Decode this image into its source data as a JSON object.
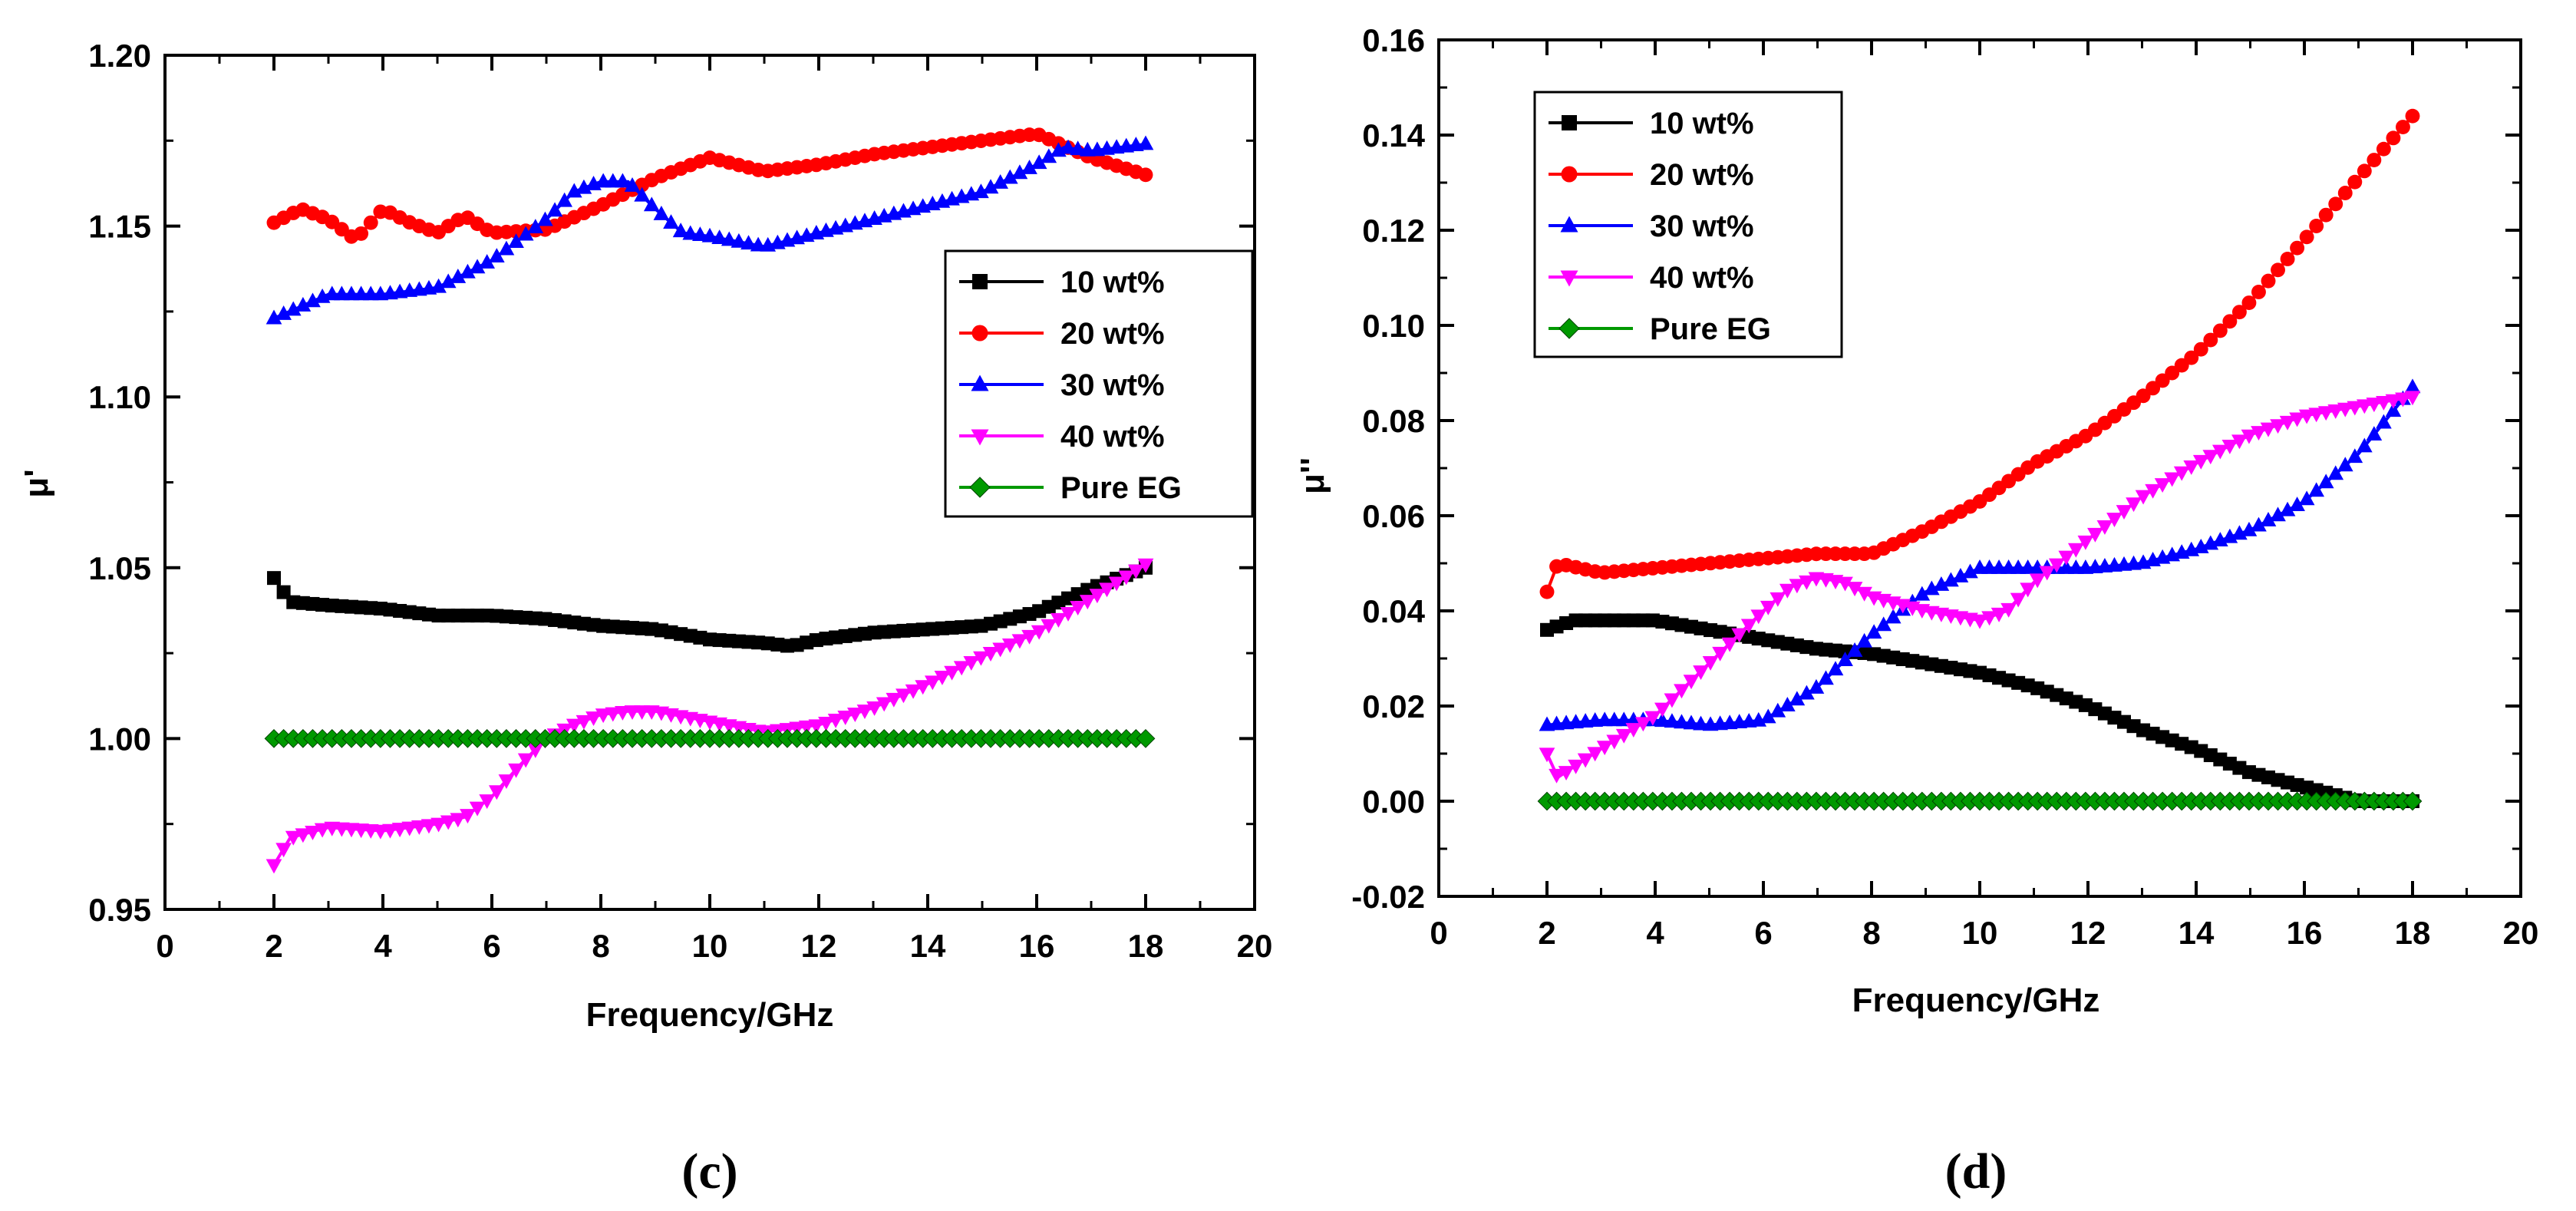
{
  "chart_data": [
    {
      "panel_label": "(c)",
      "type": "line",
      "xlabel": "Frequency/GHz",
      "ylabel": "μ'",
      "xlim": [
        0,
        20
      ],
      "ylim": [
        0.95,
        1.2
      ],
      "xticks": [
        0,
        2,
        4,
        6,
        8,
        10,
        12,
        14,
        16,
        18,
        20
      ],
      "xtick_labels": [
        "0",
        "2",
        "4",
        "6",
        "8",
        "10",
        "12",
        "14",
        "16",
        "18",
        "20"
      ],
      "yticks": [
        0.95,
        1.0,
        1.05,
        1.1,
        1.15,
        1.2
      ],
      "ytick_labels": [
        "0.95",
        "1.00",
        "1.05",
        "1.10",
        "1.15",
        "1.20"
      ],
      "legend_position": "center-right",
      "series": [
        {
          "name": "10 wt%",
          "color": "#000000",
          "marker": "square",
          "x": [
            2,
            2.3,
            3,
            4,
            5,
            6,
            7,
            8,
            9,
            10,
            11,
            11.5,
            12,
            13,
            14,
            15,
            16,
            17,
            18
          ],
          "y": [
            1.047,
            1.04,
            1.039,
            1.038,
            1.036,
            1.036,
            1.035,
            1.033,
            1.032,
            1.029,
            1.028,
            1.027,
            1.029,
            1.031,
            1.032,
            1.033,
            1.037,
            1.044,
            1.05
          ]
        },
        {
          "name": "20 wt%",
          "color": "#ff0000",
          "marker": "circle",
          "x": [
            2,
            2.5,
            3,
            3.5,
            4,
            4.5,
            5,
            5.5,
            6,
            7,
            8,
            9,
            10,
            11,
            12,
            13,
            14,
            15,
            16,
            17,
            18
          ],
          "y": [
            1.151,
            1.155,
            1.152,
            1.146,
            1.155,
            1.151,
            1.148,
            1.153,
            1.148,
            1.149,
            1.156,
            1.164,
            1.17,
            1.166,
            1.168,
            1.171,
            1.173,
            1.175,
            1.177,
            1.17,
            1.165
          ]
        },
        {
          "name": "30 wt%",
          "color": "#0000ff",
          "marker": "triangle-up",
          "x": [
            2,
            3,
            4,
            5,
            6,
            7,
            7.5,
            8,
            8.5,
            9,
            9.5,
            10,
            11,
            12,
            13,
            14,
            15,
            16,
            16.5,
            17,
            18
          ],
          "y": [
            1.123,
            1.13,
            1.13,
            1.132,
            1.14,
            1.152,
            1.16,
            1.163,
            1.163,
            1.155,
            1.148,
            1.147,
            1.144,
            1.148,
            1.152,
            1.156,
            1.16,
            1.168,
            1.173,
            1.172,
            1.174
          ]
        },
        {
          "name": "40 wt%",
          "color": "#ff00ff",
          "marker": "triangle-down",
          "x": [
            2,
            2.3,
            3,
            4,
            5,
            5.5,
            6,
            6.5,
            7,
            7.5,
            8,
            8.5,
            9,
            10,
            11,
            12,
            13,
            14,
            15,
            16,
            17,
            18
          ],
          "y": [
            0.963,
            0.971,
            0.974,
            0.973,
            0.975,
            0.977,
            0.983,
            0.992,
            1.0,
            1.004,
            1.007,
            1.008,
            1.008,
            1.005,
            1.002,
            1.004,
            1.009,
            1.016,
            1.024,
            1.031,
            1.041,
            1.051
          ]
        },
        {
          "name": "Pure EG",
          "color": "#009900",
          "marker": "diamond",
          "x": [
            2,
            18
          ],
          "y": [
            1.0,
            1.0
          ]
        }
      ]
    },
    {
      "panel_label": "(d)",
      "type": "line",
      "xlabel": "Frequency/GHz",
      "ylabel": "μ''",
      "xlim": [
        0,
        20
      ],
      "ylim": [
        -0.02,
        0.16
      ],
      "xticks": [
        0,
        2,
        4,
        6,
        8,
        10,
        12,
        14,
        16,
        18,
        20
      ],
      "xtick_labels": [
        "0",
        "2",
        "4",
        "6",
        "8",
        "10",
        "12",
        "14",
        "16",
        "18",
        "20"
      ],
      "yticks": [
        -0.02,
        0.0,
        0.02,
        0.04,
        0.06,
        0.08,
        0.1,
        0.12,
        0.14,
        0.16
      ],
      "ytick_labels": [
        "-0.02",
        "0.00",
        "0.02",
        "0.04",
        "0.06",
        "0.08",
        "0.10",
        "0.12",
        "0.14",
        "0.16"
      ],
      "legend_position": "top-left",
      "series": [
        {
          "name": "10 wt%",
          "color": "#000000",
          "marker": "square",
          "x": [
            2,
            2.5,
            3,
            4,
            5,
            6,
            7,
            8,
            9,
            10,
            11,
            12,
            13,
            14,
            15,
            16,
            17,
            18
          ],
          "y": [
            0.036,
            0.038,
            0.038,
            0.038,
            0.036,
            0.034,
            0.032,
            0.031,
            0.029,
            0.027,
            0.024,
            0.02,
            0.015,
            0.011,
            0.006,
            0.003,
            0.0,
            0.0
          ]
        },
        {
          "name": "20 wt%",
          "color": "#ff0000",
          "marker": "circle",
          "x": [
            2,
            2.2,
            3,
            4,
            5,
            6,
            7,
            8,
            9,
            10,
            11,
            12,
            13,
            14,
            15,
            16,
            17,
            18
          ],
          "y": [
            0.044,
            0.05,
            0.048,
            0.049,
            0.05,
            0.051,
            0.052,
            0.052,
            0.057,
            0.063,
            0.071,
            0.077,
            0.085,
            0.094,
            0.105,
            0.118,
            0.131,
            0.144
          ]
        },
        {
          "name": "30 wt%",
          "color": "#0000ff",
          "marker": "triangle-up",
          "x": [
            2,
            3,
            4,
            5,
            6,
            7,
            8,
            9,
            10,
            11,
            12,
            13,
            14,
            15,
            16,
            17,
            18
          ],
          "y": [
            0.016,
            0.017,
            0.017,
            0.016,
            0.017,
            0.024,
            0.035,
            0.044,
            0.049,
            0.049,
            0.049,
            0.05,
            0.053,
            0.057,
            0.063,
            0.073,
            0.087
          ]
        },
        {
          "name": "40 wt%",
          "color": "#ff00ff",
          "marker": "triangle-down",
          "x": [
            2,
            2.2,
            3,
            4,
            5,
            6,
            6.5,
            7,
            7.5,
            8,
            9,
            10,
            10.5,
            11,
            12,
            13,
            14,
            15,
            16,
            17,
            18
          ],
          "y": [
            0.01,
            0.005,
            0.011,
            0.018,
            0.029,
            0.04,
            0.045,
            0.047,
            0.046,
            0.043,
            0.04,
            0.038,
            0.04,
            0.046,
            0.055,
            0.064,
            0.071,
            0.077,
            0.081,
            0.083,
            0.085
          ]
        },
        {
          "name": "Pure EG",
          "color": "#009900",
          "marker": "diamond",
          "x": [
            2,
            18
          ],
          "y": [
            0.0,
            0.0
          ]
        }
      ]
    }
  ]
}
